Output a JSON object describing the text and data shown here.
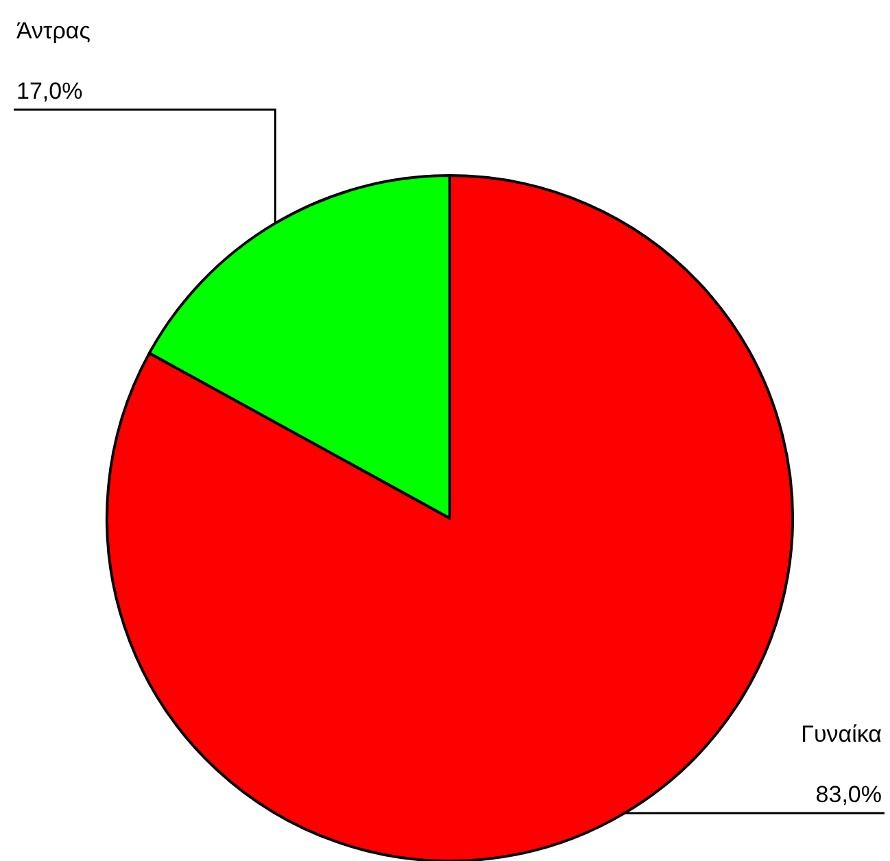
{
  "chart_data": {
    "type": "pie",
    "categories": [
      "Γυναίκα",
      "Άντρας"
    ],
    "values": [
      83.0,
      17.0
    ],
    "colors": [
      "#ff0000",
      "#00ff00"
    ],
    "value_labels": [
      "83,0%",
      "17,0%"
    ]
  }
}
